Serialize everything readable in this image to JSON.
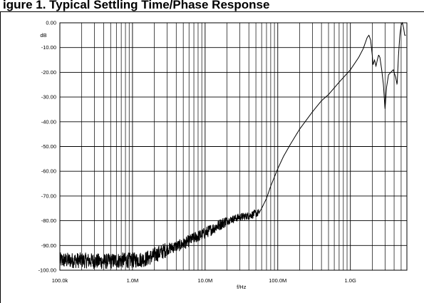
{
  "caption": "igure 1. Typical Settling Time/Phase Response",
  "chart_data": {
    "type": "line",
    "title": "",
    "xlabel": "f/Hz",
    "ylabel": "dB",
    "xscale": "log",
    "xlim": [
      100000,
      6000000000
    ],
    "ylim": [
      -100,
      0
    ],
    "grid": true,
    "x_ticks": [
      {
        "value": 100000,
        "label": "100.0k"
      },
      {
        "value": 1000000,
        "label": "1.0M"
      },
      {
        "value": 10000000,
        "label": "10.0M"
      },
      {
        "value": 100000000,
        "label": "100.0M"
      },
      {
        "value": 1000000000,
        "label": "1.0G"
      }
    ],
    "y_ticks": [
      {
        "value": 0,
        "label": "0.00"
      },
      {
        "value": -10,
        "label": "-10.00"
      },
      {
        "value": -20,
        "label": "-20.00"
      },
      {
        "value": -30,
        "label": "-30.00"
      },
      {
        "value": -40,
        "label": "-40.00"
      },
      {
        "value": -50,
        "label": "-50.00"
      },
      {
        "value": -60,
        "label": "-60.00"
      },
      {
        "value": -70,
        "label": "-70.00"
      },
      {
        "value": -80,
        "label": "-80.00"
      },
      {
        "value": -90,
        "label": "-90.00"
      },
      {
        "value": -100,
        "label": "-100.00"
      }
    ],
    "series": [
      {
        "color": "#000000",
        "points": [
          [
            100000,
            -96
          ],
          [
            200000,
            -96
          ],
          [
            400000,
            -96.5
          ],
          [
            700000,
            -96
          ],
          [
            1000000,
            -96
          ],
          [
            1500000,
            -95.5
          ],
          [
            2000000,
            -94
          ],
          [
            3000000,
            -91.5
          ],
          [
            5000000,
            -89.5
          ],
          [
            7000000,
            -87
          ],
          [
            10000000,
            -85
          ],
          [
            15000000,
            -82
          ],
          [
            20000000,
            -80
          ],
          [
            30000000,
            -78.5
          ],
          [
            40000000,
            -78
          ],
          [
            50000000,
            -77
          ],
          [
            55000000,
            -77
          ],
          [
            60000000,
            -75
          ],
          [
            70000000,
            -71
          ],
          [
            80000000,
            -66
          ],
          [
            100000000,
            -59
          ],
          [
            120000000,
            -54
          ],
          [
            150000000,
            -49
          ],
          [
            200000000,
            -43
          ],
          [
            300000000,
            -36
          ],
          [
            400000000,
            -31.5
          ],
          [
            500000000,
            -29
          ],
          [
            700000000,
            -24
          ],
          [
            1000000000,
            -19
          ],
          [
            1300000000,
            -14
          ],
          [
            1500000000,
            -10.5
          ],
          [
            1700000000,
            -6
          ],
          [
            1800000000,
            -5
          ],
          [
            1900000000,
            -7
          ],
          [
            2000000000,
            -13
          ],
          [
            2050000000,
            -17
          ],
          [
            2150000000,
            -15
          ],
          [
            2250000000,
            -17.5
          ],
          [
            2350000000,
            -15
          ],
          [
            2450000000,
            -13
          ],
          [
            2550000000,
            -14
          ],
          [
            2700000000,
            -19
          ],
          [
            2850000000,
            -25
          ],
          [
            3000000000,
            -35
          ],
          [
            3150000000,
            -26
          ],
          [
            3350000000,
            -21
          ],
          [
            3600000000,
            -20
          ],
          [
            3900000000,
            -19
          ],
          [
            4200000000,
            -22
          ],
          [
            4400000000,
            -25
          ],
          [
            4600000000,
            -13
          ],
          [
            4800000000,
            -5
          ],
          [
            5000000000,
            -1
          ],
          [
            5200000000,
            0
          ],
          [
            5400000000,
            -2
          ],
          [
            5600000000,
            -5
          ],
          [
            5800000000,
            -5
          ]
        ]
      }
    ]
  }
}
